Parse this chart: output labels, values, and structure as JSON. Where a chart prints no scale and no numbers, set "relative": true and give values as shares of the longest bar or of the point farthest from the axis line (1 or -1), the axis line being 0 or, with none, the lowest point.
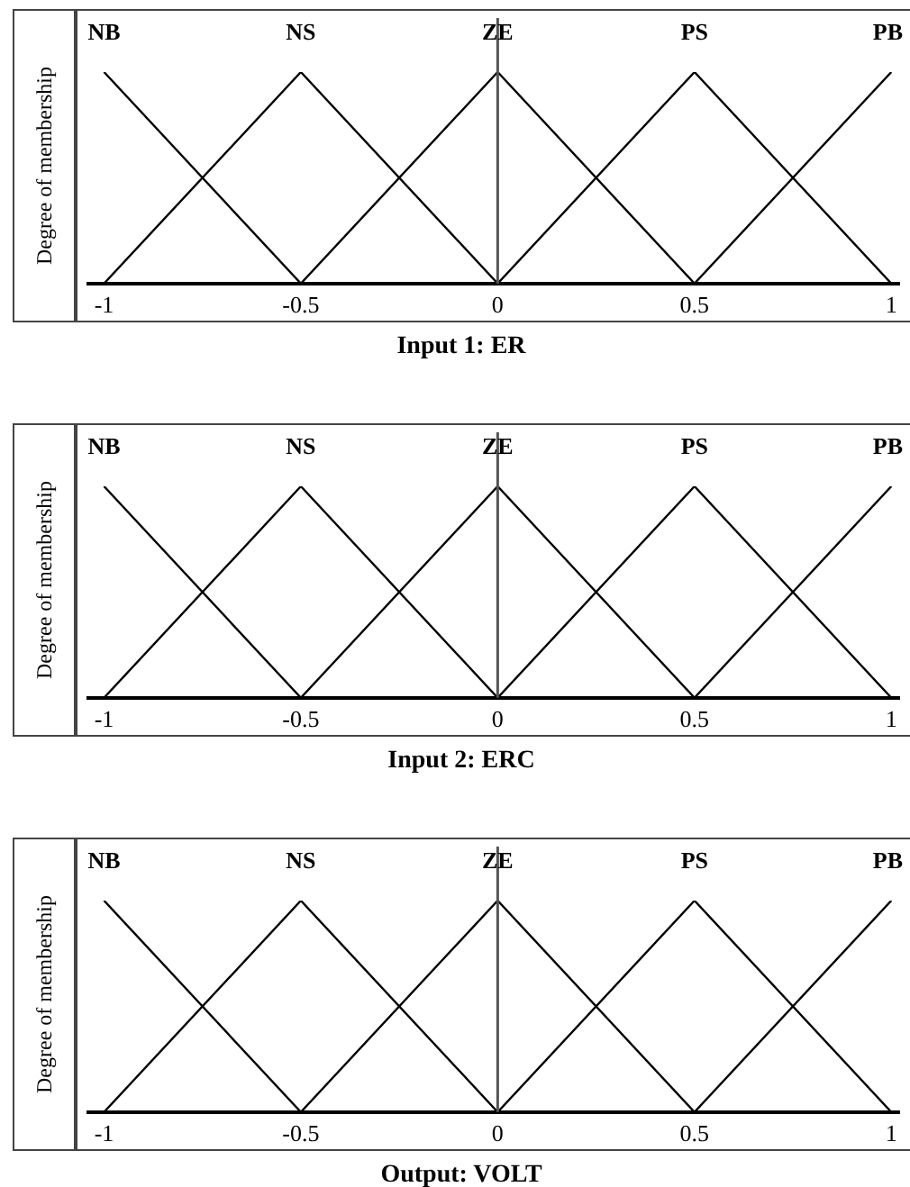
{
  "chart_data": [
    {
      "type": "line",
      "xlabel": "Input 1: ER",
      "ylabel": "Degree of membership",
      "relative": true,
      "xlim": [
        -1.04,
        1.02
      ],
      "xticks": [
        -1,
        -0.5,
        0,
        0.5,
        1
      ],
      "marker": "none",
      "ref_lines": [
        {
          "axis": "x",
          "value": 0
        }
      ],
      "series": [
        {
          "name": "NB",
          "color": "#000000",
          "x": [
            -1,
            -0.5
          ],
          "values": [
            1,
            0
          ]
        },
        {
          "name": "NS",
          "color": "#000000",
          "x": [
            -1,
            -0.5,
            0
          ],
          "values": [
            0,
            1,
            0
          ]
        },
        {
          "name": "ZE",
          "color": "#000000",
          "x": [
            -0.5,
            0,
            0.5
          ],
          "values": [
            0,
            1,
            0
          ]
        },
        {
          "name": "PS",
          "color": "#000000",
          "x": [
            0,
            0.5,
            1
          ],
          "values": [
            0,
            1,
            0
          ]
        },
        {
          "name": "PB",
          "color": "#000000",
          "x": [
            0.5,
            1
          ],
          "values": [
            0,
            1
          ]
        }
      ]
    },
    {
      "type": "line",
      "xlabel": "Input 2: ERC",
      "ylabel": "Degree of membership",
      "relative": true,
      "xlim": [
        -1.04,
        1.02
      ],
      "xticks": [
        -1,
        -0.5,
        0,
        0.5,
        1
      ],
      "marker": "none",
      "ref_lines": [
        {
          "axis": "x",
          "value": 0
        }
      ],
      "series": [
        {
          "name": "NB",
          "color": "#000000",
          "x": [
            -1,
            -0.5
          ],
          "values": [
            1,
            0
          ]
        },
        {
          "name": "NS",
          "color": "#000000",
          "x": [
            -1,
            -0.5,
            0
          ],
          "values": [
            0,
            1,
            0
          ]
        },
        {
          "name": "ZE",
          "color": "#000000",
          "x": [
            -0.5,
            0,
            0.5
          ],
          "values": [
            0,
            1,
            0
          ]
        },
        {
          "name": "PS",
          "color": "#000000",
          "x": [
            0,
            0.5,
            1
          ],
          "values": [
            0,
            1,
            0
          ]
        },
        {
          "name": "PB",
          "color": "#000000",
          "x": [
            0.5,
            1
          ],
          "values": [
            0,
            1
          ]
        }
      ]
    },
    {
      "type": "line",
      "xlabel": "Output: VOLT",
      "ylabel": "Degree of membership",
      "relative": true,
      "xlim": [
        -1.04,
        1.02
      ],
      "xticks": [
        -1,
        -0.5,
        0,
        0.5,
        1
      ],
      "marker": "none",
      "ref_lines": [
        {
          "axis": "x",
          "value": 0
        }
      ],
      "series": [
        {
          "name": "NB",
          "color": "#000000",
          "x": [
            -1,
            -0.5
          ],
          "values": [
            1,
            0
          ]
        },
        {
          "name": "NS",
          "color": "#000000",
          "x": [
            -1,
            -0.5,
            0
          ],
          "values": [
            0,
            1,
            0
          ]
        },
        {
          "name": "ZE",
          "color": "#000000",
          "x": [
            -0.5,
            0,
            0.5
          ],
          "values": [
            0,
            1,
            0
          ]
        },
        {
          "name": "PS",
          "color": "#000000",
          "x": [
            0,
            0.5,
            1
          ],
          "values": [
            0,
            1,
            0
          ]
        },
        {
          "name": "PB",
          "color": "#000000",
          "x": [
            0.5,
            1
          ],
          "values": [
            0,
            1
          ]
        }
      ]
    }
  ]
}
